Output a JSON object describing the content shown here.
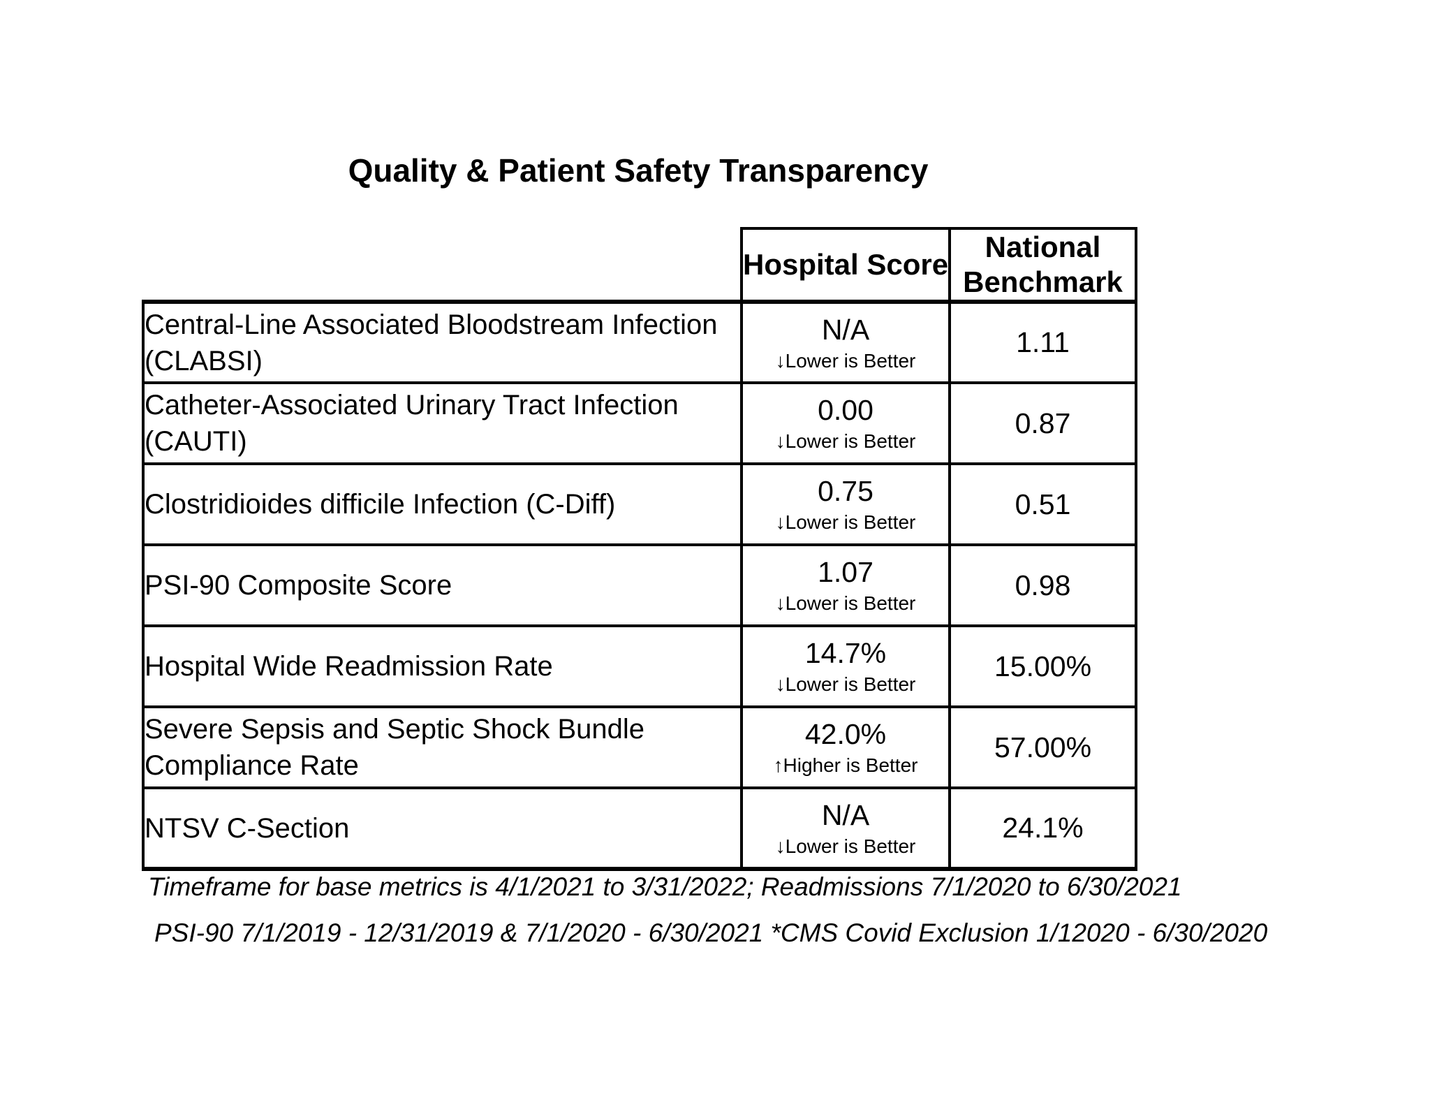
{
  "page": {
    "title": "Quality & Patient Safety Transparency"
  },
  "colors": {
    "text": "#000000",
    "background": "#ffffff",
    "border": "#000000"
  },
  "table": {
    "header": {
      "hospital_score": "Hospital Score",
      "national_benchmark": "National Benchmark"
    },
    "rows": [
      {
        "metric": "Central-Line Associated Bloodstream Infection (CLABSI)",
        "score": "N/A",
        "arrow": "↓",
        "direction": "Lower is Better",
        "benchmark": "1.11"
      },
      {
        "metric": "Catheter-Associated Urinary Tract Infection (CAUTI)",
        "score": "0.00",
        "arrow": "↓",
        "direction": "Lower is Better",
        "benchmark": "0.87"
      },
      {
        "metric": "Clostridioides difficile Infection (C-Diff)",
        "score": "0.75",
        "arrow": "↓",
        "direction": "Lower is Better",
        "benchmark": "0.51"
      },
      {
        "metric": "PSI-90 Composite Score",
        "score": "1.07",
        "arrow": "↓",
        "direction": "Lower is Better",
        "benchmark": "0.98"
      },
      {
        "metric": "Hospital Wide Readmission Rate",
        "score": "14.7%",
        "arrow": "↓",
        "direction": "Lower is Better",
        "benchmark": "15.00%"
      },
      {
        "metric": "Severe Sepsis and Septic Shock Bundle Compliance Rate",
        "score": "42.0%",
        "arrow": "↑",
        "direction": "Higher is Better",
        "benchmark": "57.00%"
      },
      {
        "metric": "NTSV C-Section",
        "score": "N/A",
        "arrow": "↓",
        "direction": "Lower is Better",
        "benchmark": "24.1%"
      }
    ]
  },
  "footnotes": {
    "line1": "Timeframe for base metrics is 4/1/2021 to 3/31/2022; Readmissions 7/1/2020 to 6/30/2021",
    "line2": "PSI-90 7/1/2019 - 12/31/2019 & 7/1/2020 - 6/30/2021  *CMS Covid Exclusion 1/12020 - 6/30/2020"
  }
}
